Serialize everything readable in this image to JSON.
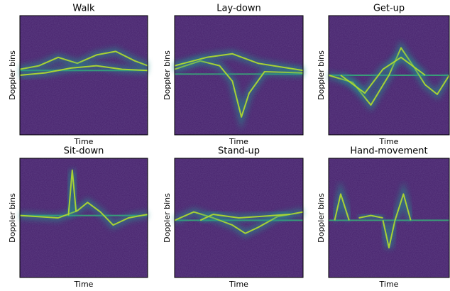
{
  "chart_data": [
    {
      "type": "heatmap",
      "title": "Walk",
      "xlabel": "Time",
      "ylabel": "Doppler bins"
    },
    {
      "type": "heatmap",
      "title": "Lay-down",
      "xlabel": "Time",
      "ylabel": "Doppler bins"
    },
    {
      "type": "heatmap",
      "title": "Get-up",
      "xlabel": "Time",
      "ylabel": "Doppler bins"
    },
    {
      "type": "heatmap",
      "title": "Sit-down",
      "xlabel": "Time",
      "ylabel": "Doppler bins"
    },
    {
      "type": "heatmap",
      "title": "Stand-up",
      "xlabel": "Time",
      "ylabel": "Doppler bins"
    },
    {
      "type": "heatmap",
      "title": "Hand-movement",
      "xlabel": "Time",
      "ylabel": "Doppler bins"
    }
  ]
}
